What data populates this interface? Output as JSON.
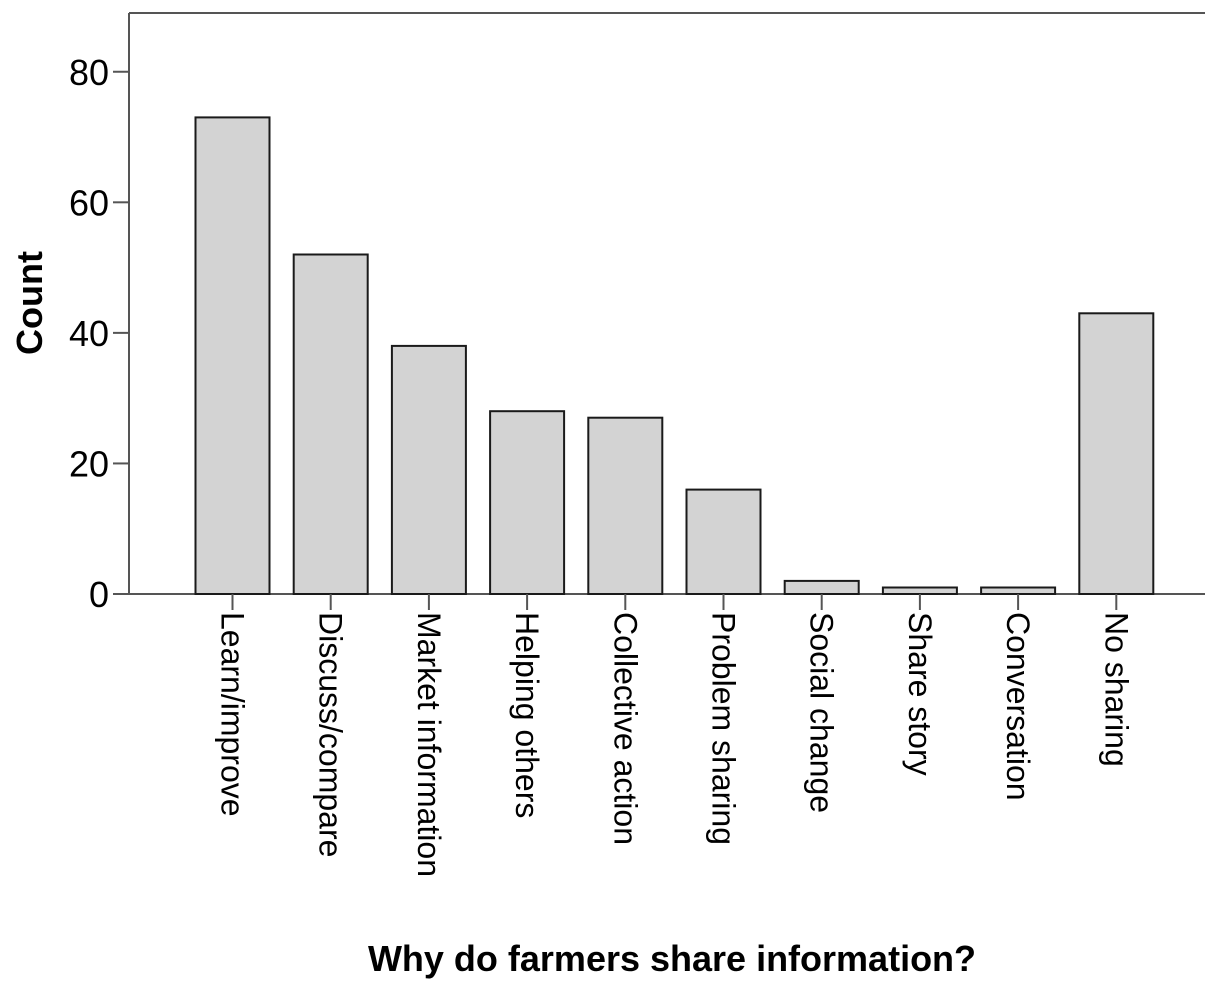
{
  "chart_data": {
    "type": "bar",
    "title": "",
    "xlabel": "Why do farmers share information?",
    "ylabel": "Count",
    "categories": [
      "Learn/improve",
      "Discuss/compare",
      "Market information",
      "Helping others",
      "Collective action",
      "Problem sharing",
      "Social change",
      "Share story",
      "Conversation",
      "No sharing"
    ],
    "values": [
      73,
      52,
      38,
      28,
      27,
      16,
      2,
      1,
      1,
      43
    ],
    "ylim": [
      0,
      89
    ],
    "yticks": [
      0,
      20,
      40,
      60,
      80
    ],
    "ytick_labels": [
      "0",
      "20",
      "40",
      "60",
      "80"
    ],
    "grid": false,
    "legend": "none",
    "colors": {
      "bar_fill": "#d3d3d3",
      "bar_stroke": "#1a1a1a",
      "axis": "#555555",
      "background": "#ffffff"
    }
  }
}
